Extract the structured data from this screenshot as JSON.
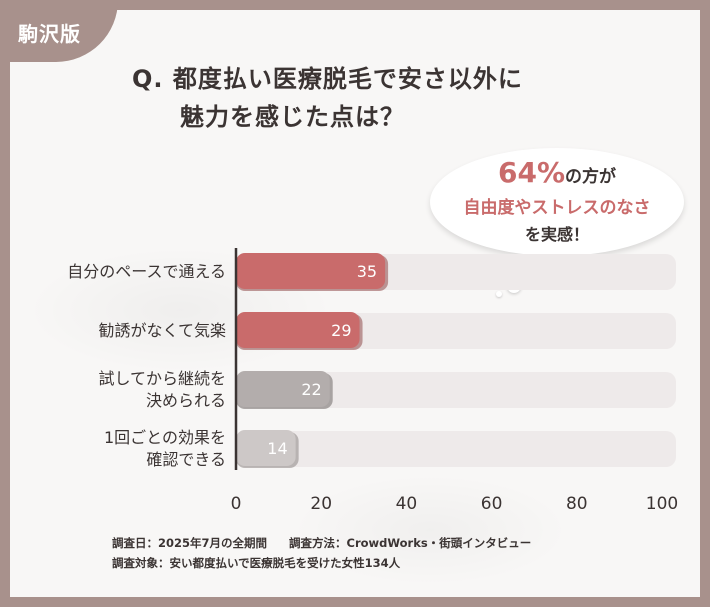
{
  "badge": "駒沢版",
  "title": {
    "line1": "Q. 都度払い医療脱毛で安さ以外に",
    "line2": "魅力を感じた点は？"
  },
  "bubble": {
    "percent": "64%",
    "line1_suffix": "の方が",
    "line2": "自由度やストレスのなさ",
    "line3": "を実感！"
  },
  "colors": {
    "highlight": "#c96b6b",
    "muted": "#b3adac",
    "light_muted": "#cdc8c7",
    "track": "#eeeaea",
    "background": "#a8918c"
  },
  "chart_data": {
    "type": "bar",
    "orientation": "horizontal",
    "categories": [
      [
        "自分のペースで通える"
      ],
      [
        "勧誘がなくて気楽"
      ],
      [
        "試してから継続を",
        "決められる"
      ],
      [
        "1回ごとの効果を",
        "確認できる"
      ]
    ],
    "values": [
      35,
      29,
      22,
      14
    ],
    "xlim": [
      0,
      100
    ],
    "xticks": [
      "0",
      "20",
      "40",
      "60",
      "80",
      "100"
    ],
    "grid": false,
    "legend": "none"
  },
  "footer": {
    "line1_a": "調査日：2025年7月の全期間",
    "line1_b": "調査方法：CrowdWorks・街頭インタビュー",
    "line2": "調査対象：安い都度払いで医療脱毛を受けた女性134人"
  }
}
